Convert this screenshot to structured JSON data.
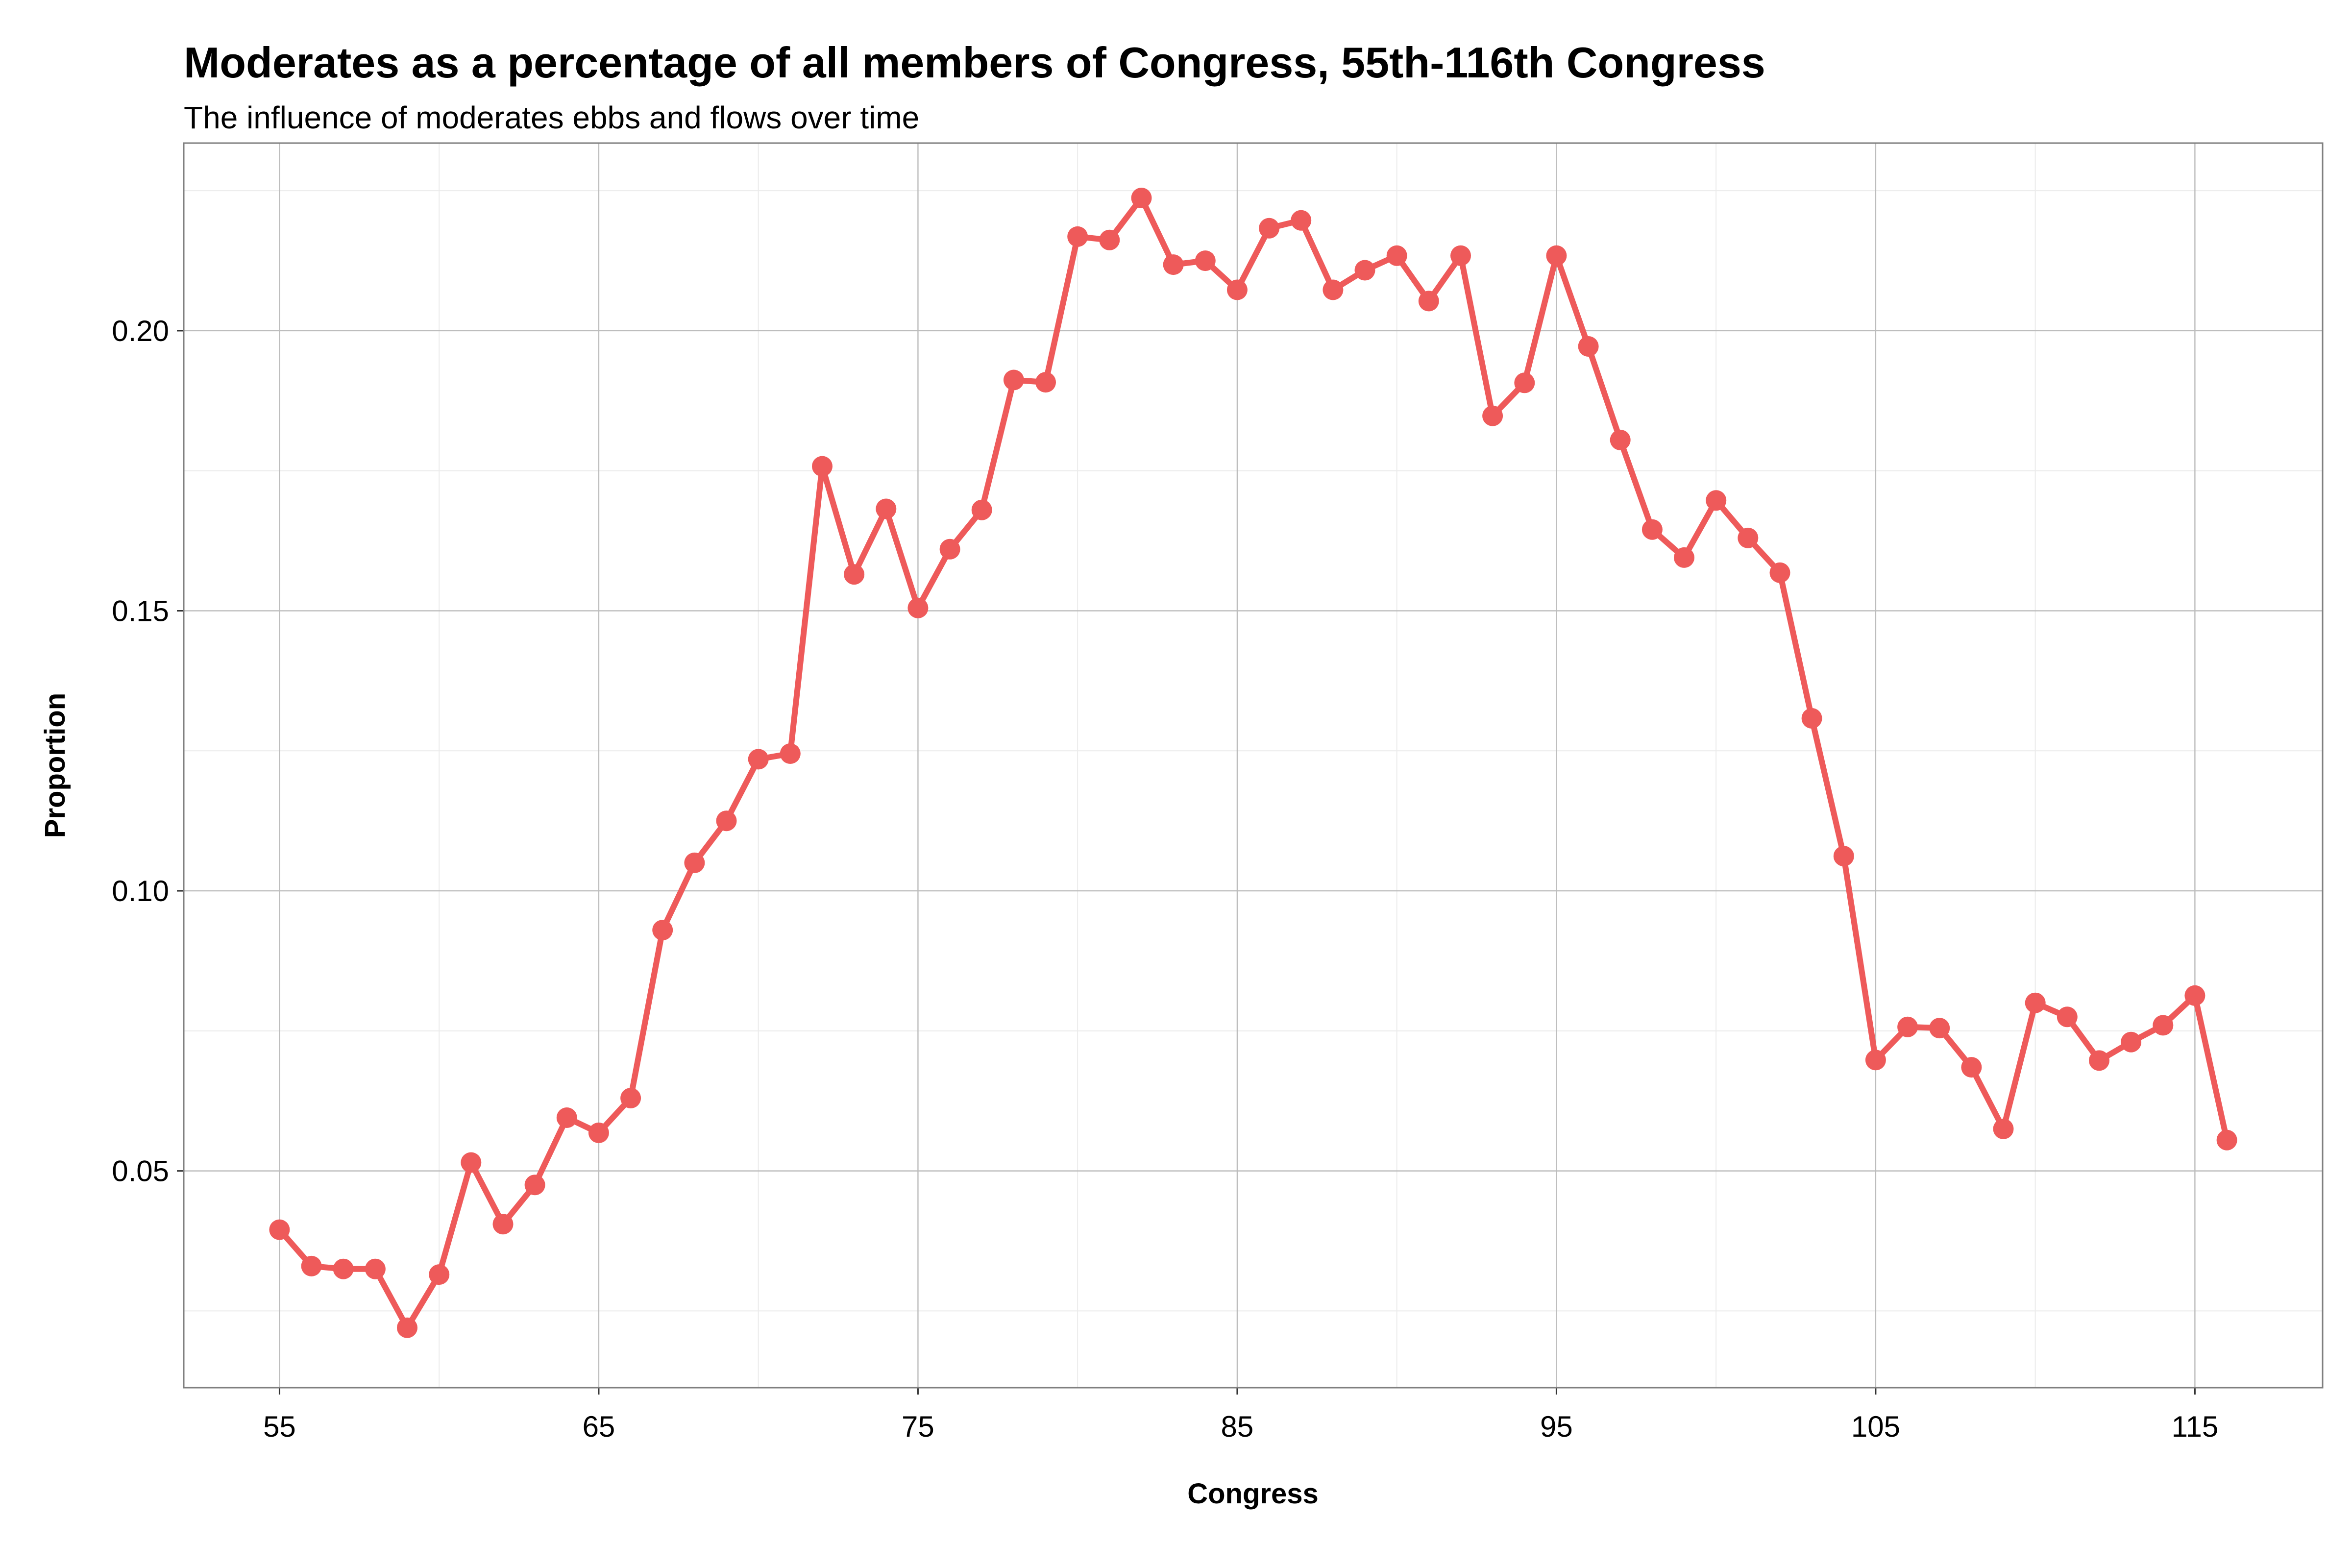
{
  "chart_data": {
    "type": "line",
    "title": "Moderates as a percentage of all members of Congress, 55th-116th Congress",
    "subtitle": "The influence of moderates ebbs and flows over time",
    "xlabel": "Congress",
    "ylabel": "Proportion",
    "x_ticks": [
      55,
      65,
      75,
      85,
      95,
      105,
      115
    ],
    "y_ticks": [
      "0.05",
      "0.10",
      "0.15",
      "0.20"
    ],
    "xlim": [
      52,
      119
    ],
    "ylim": [
      0.0113,
      0.2335
    ],
    "grid": true,
    "legend": "none",
    "line_color": "#ee5a5a",
    "x": [
      55,
      56,
      57,
      58,
      59,
      60,
      61,
      62,
      63,
      64,
      65,
      66,
      67,
      68,
      69,
      70,
      71,
      72,
      73,
      74,
      75,
      76,
      77,
      78,
      79,
      80,
      81,
      82,
      83,
      84,
      85,
      86,
      87,
      88,
      89,
      90,
      91,
      92,
      93,
      94,
      95,
      96,
      97,
      98,
      99,
      100,
      101,
      102,
      103,
      104,
      105,
      106,
      107,
      108,
      109,
      110,
      111,
      112,
      113,
      114,
      115,
      116
    ],
    "y": [
      0.0395,
      0.033,
      0.0325,
      0.0325,
      0.022,
      0.0315,
      0.0515,
      0.0405,
      0.0475,
      0.0595,
      0.0568,
      0.063,
      0.093,
      0.105,
      0.1125,
      0.1235,
      0.1245,
      0.1758,
      0.1565,
      0.1682,
      0.1505,
      0.161,
      0.168,
      0.1912,
      0.1908,
      0.2168,
      0.2162,
      0.2237,
      0.2118,
      0.2125,
      0.2073,
      0.2183,
      0.2197,
      0.2073,
      0.2108,
      0.2134,
      0.2053,
      0.2134,
      0.1848,
      0.1907,
      0.2134,
      0.1972,
      0.1805,
      0.1645,
      0.1595,
      0.1697,
      0.163,
      0.1568,
      0.1308,
      0.1062,
      0.0698,
      0.0757,
      0.0755,
      0.0685,
      0.0575,
      0.08,
      0.0775,
      0.0697,
      0.073,
      0.076,
      0.0813,
      0.0555
    ]
  }
}
